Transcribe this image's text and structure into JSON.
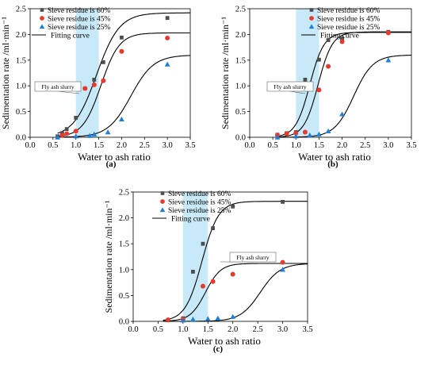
{
  "chart_data": [
    {
      "type": "scatter",
      "panel_label": "(a)",
      "xlabel": "Water to ash ratio",
      "ylabel": "Sedimentation rate /ml·min⁻¹",
      "xlim": [
        0.0,
        3.5
      ],
      "ylim": [
        0.0,
        2.5
      ],
      "xticks": [
        0.0,
        0.5,
        1.0,
        1.5,
        2.0,
        2.5,
        3.0,
        3.5
      ],
      "yticks": [
        0.0,
        0.5,
        1.0,
        1.5,
        2.0,
        2.5
      ],
      "shaded_region": {
        "x": [
          1.0,
          1.5
        ],
        "label": "Fly ash slurry"
      },
      "legend_position": "top-left",
      "series": [
        {
          "name": "Sieve residue is 60%",
          "marker": "square",
          "color": "#4d4d4d",
          "x": [
            0.6,
            0.7,
            0.8,
            1.0,
            1.2,
            1.4,
            1.6,
            2.0,
            3.0
          ],
          "y": [
            0.02,
            0.08,
            0.16,
            0.38,
            0.95,
            1.12,
            1.46,
            1.94,
            2.32
          ]
        },
        {
          "name": "Sieve residue is 45%",
          "marker": "circle",
          "color": "#e8392f",
          "x": [
            0.7,
            0.8,
            1.0,
            1.2,
            1.4,
            1.6,
            2.0,
            3.0
          ],
          "y": [
            0.04,
            0.07,
            0.12,
            0.95,
            1.02,
            1.1,
            1.67,
            1.93
          ]
        },
        {
          "name": "Sieve residue is 25%",
          "marker": "triangle",
          "color": "#1f7fd6",
          "x": [
            0.6,
            1.0,
            1.3,
            1.4,
            1.7,
            2.0,
            3.0
          ],
          "y": [
            0.0,
            0.02,
            0.03,
            0.06,
            0.1,
            0.35,
            1.42
          ]
        }
      ],
      "fitting_curve": {
        "name": "Fitting curve",
        "curves": [
          {
            "A": 2.42,
            "x0": 1.45,
            "k": 4.0,
            "offset": 0.0
          },
          {
            "A": 2.03,
            "x0": 1.55,
            "k": 5.0,
            "offset": 0.0
          },
          {
            "A": 1.6,
            "x0": 2.2,
            "k": 4.0,
            "offset": 0.0
          }
        ]
      }
    },
    {
      "type": "scatter",
      "panel_label": "(b)",
      "xlabel": "Water to ash ratio",
      "ylabel": "Sedimentation rate /ml·min⁻¹",
      "xlim": [
        0.0,
        3.5
      ],
      "ylim": [
        0.0,
        2.5
      ],
      "xticks": [
        0.0,
        0.5,
        1.0,
        1.5,
        2.0,
        2.5,
        3.0,
        3.5
      ],
      "yticks": [
        0.0,
        0.5,
        1.0,
        1.5,
        2.0,
        2.5
      ],
      "shaded_region": {
        "x": [
          1.0,
          1.5
        ],
        "label": "Fly ash slurry"
      },
      "legend_position": "top-right",
      "series": [
        {
          "name": "Sieve residue is 60%",
          "marker": "square",
          "color": "#4d4d4d",
          "x": [
            0.6,
            0.8,
            1.0,
            1.2,
            1.5,
            1.7,
            2.0,
            3.0
          ],
          "y": [
            0.05,
            0.08,
            0.1,
            1.12,
            1.51,
            1.89,
            1.92,
            2.05
          ]
        },
        {
          "name": "Sieve residue is 45%",
          "marker": "circle",
          "color": "#e8392f",
          "x": [
            0.6,
            0.8,
            1.0,
            1.2,
            1.5,
            1.7,
            2.0,
            3.0
          ],
          "y": [
            0.04,
            0.07,
            0.08,
            0.1,
            0.92,
            1.38,
            1.86,
            2.03
          ]
        },
        {
          "name": "Sieve residue is 25%",
          "marker": "triangle",
          "color": "#1f7fd6",
          "x": [
            0.6,
            1.0,
            1.3,
            1.5,
            1.7,
            2.0,
            3.0
          ],
          "y": [
            0.0,
            0.02,
            0.04,
            0.06,
            0.12,
            0.45,
            1.5
          ]
        }
      ],
      "fitting_curve": {
        "name": "Fitting curve",
        "curves": [
          {
            "A": 2.04,
            "x0": 1.3,
            "k": 6.5,
            "offset": 0.0
          },
          {
            "A": 2.05,
            "x0": 1.48,
            "k": 6.5,
            "offset": 0.0
          },
          {
            "A": 1.6,
            "x0": 2.25,
            "k": 4.8,
            "offset": 0.0
          }
        ]
      }
    },
    {
      "type": "scatter",
      "panel_label": "(c)",
      "xlabel": "Water to ash ratio",
      "ylabel": "Sedimentation rate /ml·min⁻¹",
      "xlim": [
        0.0,
        3.5
      ],
      "ylim": [
        0.0,
        2.5
      ],
      "xticks": [
        0.0,
        0.5,
        1.0,
        1.5,
        2.0,
        2.5,
        3.0,
        3.5
      ],
      "yticks": [
        0.0,
        0.5,
        1.0,
        1.5,
        2.0,
        2.5
      ],
      "shaded_region": {
        "x": [
          1.0,
          1.5
        ],
        "label": "Fly ash slurry"
      },
      "legend_position": "top-left",
      "series": [
        {
          "name": "Sieve residue is 60%",
          "marker": "square",
          "color": "#4d4d4d",
          "x": [
            0.7,
            1.0,
            1.2,
            1.4,
            1.6,
            2.0,
            3.0
          ],
          "y": [
            0.02,
            0.06,
            0.96,
            1.5,
            1.8,
            2.22,
            2.31
          ]
        },
        {
          "name": "Sieve residue is 45%",
          "marker": "circle",
          "color": "#e8392f",
          "x": [
            0.7,
            1.0,
            1.4,
            1.6,
            2.0,
            3.0
          ],
          "y": [
            0.03,
            0.04,
            0.68,
            0.77,
            0.91,
            1.14
          ]
        },
        {
          "name": "Sieve residue is 25%",
          "marker": "triangle",
          "color": "#1f7fd6",
          "x": [
            1.0,
            1.2,
            1.5,
            1.7,
            2.0,
            3.0
          ],
          "y": [
            0.02,
            0.04,
            0.05,
            0.06,
            0.09,
            1.0
          ]
        }
      ],
      "fitting_curve": {
        "name": "Fitting curve",
        "curves": [
          {
            "A": 2.32,
            "x0": 1.38,
            "k": 6.0,
            "offset": 0.0
          },
          {
            "A": 1.12,
            "x0": 1.45,
            "k": 6.5,
            "offset": 0.0
          },
          {
            "A": 1.12,
            "x0": 2.55,
            "k": 5.0,
            "offset": 0.0
          }
        ]
      }
    }
  ]
}
